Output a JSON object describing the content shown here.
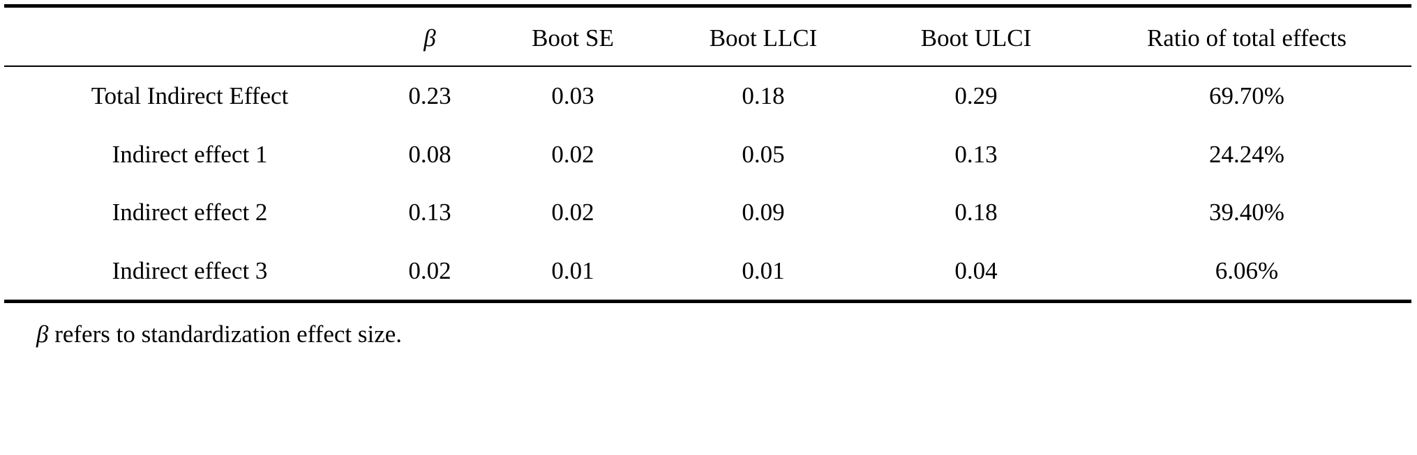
{
  "table": {
    "header": [
      "β",
      "Boot SE",
      "Boot LLCI",
      "Boot ULCI",
      "Ratio of total effects"
    ],
    "rows": [
      [
        "Total Indirect Effect",
        "0.23",
        "0.03",
        "0.18",
        "0.29",
        "69.70%"
      ],
      [
        "Indirect effect 1",
        "0.08",
        "0.02",
        "0.05",
        "0.13",
        "24.24%"
      ],
      [
        "Indirect effect 2",
        "0.13",
        "0.02",
        "0.09",
        "0.18",
        "39.40%"
      ],
      [
        "Indirect effect 3",
        "0.02",
        "0.01",
        "0.01",
        "0.04",
        "6.06%"
      ]
    ]
  },
  "note": {
    "symbol": "β",
    "text": "refers to standardization effect size."
  }
}
